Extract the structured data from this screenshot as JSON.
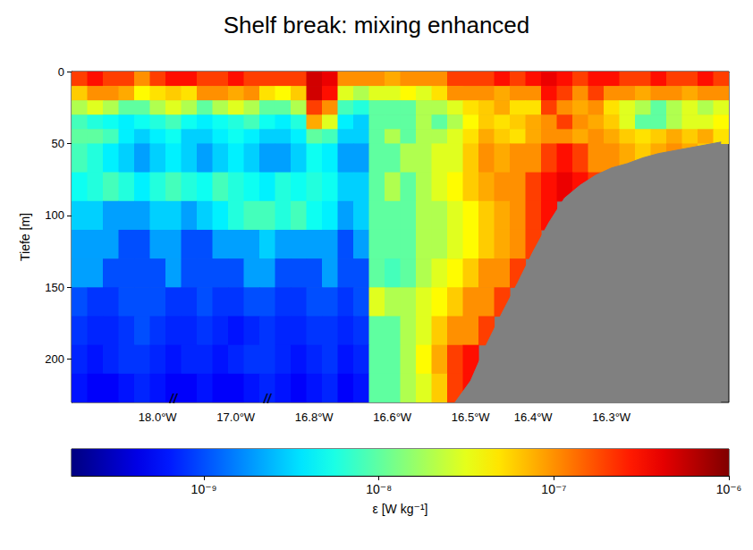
{
  "chart_data": {
    "type": "heatmap",
    "title": "Shelf break: mixing enhanced",
    "y_label": "Tiefe [m]",
    "categories": [
      null,
      null,
      null,
      null,
      null,
      "18.0°W",
      null,
      null,
      null,
      null,
      "17.0°W",
      null,
      null,
      null,
      null,
      "16.8°W",
      null,
      null,
      null,
      null,
      "16.6°W",
      null,
      null,
      null,
      null,
      "16.5°W",
      null,
      null,
      null,
      "16.4°W",
      null,
      null,
      null,
      null,
      "16.3°W",
      null,
      null,
      null,
      null,
      null,
      null,
      null
    ],
    "depth_edges": [
      0,
      10,
      20,
      30,
      40,
      50,
      70,
      90,
      110,
      130,
      150,
      170,
      190,
      210,
      230
    ],
    "cells": [
      [
        2e-07,
        3e-07,
        2e-07,
        2e-07,
        1e-07,
        2e-07,
        3e-07,
        3e-07,
        2e-07,
        2e-07,
        3e-07,
        2e-07,
        2e-07,
        2e-07,
        2e-07,
        5e-07,
        4e-07,
        1e-07,
        1e-07,
        1e-07,
        8e-08,
        1e-07,
        1e-07,
        1e-07,
        2e-07,
        2e-07,
        2e-07,
        3e-07,
        2e-07,
        3e-07,
        4e-07,
        3e-07,
        2e-07,
        3e-07,
        3e-07,
        2e-07,
        2e-07,
        3e-07,
        2e-07,
        2e-07,
        3e-07,
        2e-07
      ],
      [
        6e-08,
        1e-07,
        1e-07,
        8e-08,
        4e-08,
        5e-08,
        6e-08,
        5e-08,
        1e-07,
        1e-07,
        8e-08,
        1e-07,
        5e-08,
        4e-08,
        6e-08,
        5e-07,
        3e-07,
        3e-08,
        2e-08,
        3e-08,
        3e-08,
        4e-08,
        3e-08,
        5e-08,
        1e-07,
        1e-07,
        1e-07,
        8e-08,
        1e-07,
        1e-07,
        3e-07,
        2e-07,
        1e-07,
        2e-07,
        1e-07,
        1e-07,
        8e-08,
        1e-07,
        1e-07,
        8e-08,
        1e-07,
        1e-07
      ],
      [
        2e-08,
        3e-08,
        2e-08,
        1e-08,
        1e-08,
        2e-08,
        3e-08,
        2e-08,
        1e-08,
        2e-08,
        3e-08,
        2e-08,
        1e-08,
        1e-08,
        2e-08,
        2e-07,
        1e-07,
        8e-09,
        6e-09,
        1e-08,
        1e-08,
        1e-08,
        2e-08,
        2e-08,
        3e-08,
        5e-08,
        6e-08,
        8e-08,
        5e-08,
        5e-08,
        2e-07,
        1e-07,
        8e-08,
        1e-07,
        5e-08,
        3e-08,
        2e-08,
        1e-08,
        2e-08,
        3e-08,
        2e-08,
        3e-08
      ],
      [
        8e-09,
        6e-09,
        5e-09,
        4e-09,
        5e-09,
        6e-09,
        8e-09,
        5e-09,
        4e-09,
        5e-09,
        6e-09,
        8e-09,
        5e-09,
        4e-09,
        6e-09,
        8e-08,
        3e-08,
        4e-09,
        3e-09,
        1e-08,
        1e-08,
        1e-08,
        2e-08,
        1e-08,
        2e-08,
        4e-08,
        6e-08,
        5e-08,
        6e-08,
        8e-08,
        1e-07,
        2e-07,
        1e-07,
        8e-08,
        6e-08,
        3e-08,
        1e-08,
        1e-08,
        2e-08,
        3e-08,
        3e-08,
        4e-08
      ],
      [
        1e-08,
        1e-08,
        8e-09,
        4e-09,
        3e-09,
        4e-09,
        5e-09,
        3e-09,
        3e-09,
        4e-09,
        5e-09,
        4e-09,
        3e-09,
        3e-09,
        4e-09,
        1e-08,
        8e-09,
        3e-09,
        3e-09,
        1e-08,
        2e-08,
        1e-08,
        2e-08,
        2e-08,
        3e-08,
        5e-08,
        8e-08,
        6e-08,
        5e-08,
        8e-08,
        1e-07,
        1e-07,
        8e-08,
        1e-07,
        8e-08,
        6e-08,
        5e-08,
        6e-08,
        8e-08,
        6e-08,
        8e-08,
        5e-08
      ],
      [
        8e-09,
        6e-09,
        4e-09,
        3e-09,
        2e-09,
        3e-09,
        4e-09,
        3e-09,
        2e-09,
        3e-09,
        4e-09,
        3e-09,
        2e-09,
        2e-09,
        3e-09,
        5e-09,
        4e-09,
        2e-09,
        2e-09,
        1e-08,
        1e-08,
        2e-08,
        2e-08,
        3e-08,
        3e-08,
        6e-08,
        1e-07,
        8e-08,
        1e-07,
        1e-07,
        2e-07,
        3e-07,
        2e-07,
        1e-07,
        1e-07,
        8e-08,
        6e-08,
        8e-08,
        1e-07,
        8e-08,
        6e-08,
        null
      ],
      [
        5e-09,
        6e-09,
        8e-09,
        6e-09,
        4e-09,
        6e-09,
        8e-09,
        6e-09,
        5e-09,
        8e-09,
        6e-09,
        5e-09,
        4e-09,
        6e-09,
        5e-09,
        6e-09,
        5e-09,
        3e-09,
        3e-09,
        1e-08,
        2e-08,
        1e-08,
        2e-08,
        3e-08,
        4e-08,
        6e-08,
        8e-08,
        1e-07,
        1e-07,
        2e-07,
        3e-07,
        4e-07,
        3e-07,
        2e-07,
        null,
        null,
        null,
        null,
        null,
        null,
        null,
        null
      ],
      [
        3e-09,
        3e-09,
        2e-09,
        2e-09,
        2e-09,
        3e-09,
        3e-09,
        2e-09,
        3e-09,
        4e-09,
        6e-09,
        8e-09,
        8e-09,
        6e-09,
        8e-09,
        5e-09,
        4e-09,
        2e-09,
        3e-09,
        1e-08,
        1e-08,
        1e-08,
        2e-08,
        2e-08,
        3e-08,
        4e-08,
        6e-08,
        8e-08,
        1e-07,
        2e-07,
        3e-07,
        null,
        null,
        null,
        null,
        null,
        null,
        null,
        null,
        null,
        null,
        null
      ],
      [
        2e-09,
        2e-09,
        2e-09,
        1e-09,
        1e-09,
        2e-09,
        2e-09,
        1e-09,
        1e-09,
        2e-09,
        2e-09,
        2e-09,
        3e-09,
        2e-09,
        2e-09,
        2e-09,
        2e-09,
        1e-09,
        2e-09,
        1e-08,
        1e-08,
        1e-08,
        2e-08,
        2e-08,
        3e-08,
        4e-08,
        6e-08,
        8e-08,
        1e-07,
        2e-07,
        null,
        null,
        null,
        null,
        null,
        null,
        null,
        null,
        null,
        null,
        null,
        null
      ],
      [
        2e-09,
        2e-09,
        1e-09,
        1e-09,
        1e-09,
        1e-09,
        2e-09,
        1e-09,
        1e-09,
        1e-09,
        1e-09,
        2e-09,
        2e-09,
        1e-09,
        1e-09,
        1e-09,
        2e-09,
        1e-09,
        1e-09,
        1e-08,
        8e-09,
        1e-08,
        2e-08,
        3e-08,
        4e-08,
        6e-08,
        1e-07,
        1e-07,
        2e-07,
        null,
        null,
        null,
        null,
        null,
        null,
        null,
        null,
        null,
        null,
        null,
        null,
        null
      ],
      [
        1e-09,
        8e-10,
        8e-10,
        1e-09,
        1e-09,
        1e-09,
        8e-10,
        8e-10,
        1e-09,
        8e-10,
        8e-10,
        1e-09,
        1e-09,
        8e-10,
        8e-10,
        1e-09,
        1e-09,
        8e-10,
        1e-09,
        3e-08,
        2e-08,
        2e-08,
        3e-08,
        4e-08,
        6e-08,
        1e-07,
        1e-07,
        2e-07,
        null,
        null,
        null,
        null,
        null,
        null,
        null,
        null,
        null,
        null,
        null,
        null,
        null,
        null
      ],
      [
        8e-10,
        7e-10,
        7e-10,
        8e-10,
        1e-09,
        8e-10,
        7e-10,
        7e-10,
        8e-10,
        7e-10,
        6e-10,
        7e-10,
        8e-10,
        7e-10,
        7e-10,
        8e-10,
        8e-10,
        7e-10,
        8e-10,
        1e-08,
        1e-08,
        2e-08,
        3e-08,
        6e-08,
        1e-07,
        1e-07,
        2e-07,
        null,
        null,
        null,
        null,
        null,
        null,
        null,
        null,
        null,
        null,
        null,
        null,
        null,
        null,
        null
      ],
      [
        7e-10,
        6e-10,
        7e-10,
        8e-10,
        8e-10,
        7e-10,
        6e-10,
        7e-10,
        7e-10,
        6e-10,
        7e-10,
        8e-10,
        8e-10,
        7e-10,
        6e-10,
        7e-10,
        8e-10,
        6e-10,
        7e-10,
        1e-08,
        1e-08,
        2e-08,
        4e-08,
        8e-08,
        2e-07,
        3e-07,
        null,
        null,
        null,
        null,
        null,
        null,
        null,
        null,
        null,
        null,
        null,
        null,
        null,
        null,
        null,
        null
      ],
      [
        6e-10,
        5e-10,
        5e-10,
        6e-10,
        7e-10,
        6e-10,
        5e-10,
        5e-10,
        6e-10,
        5e-10,
        5e-10,
        6e-10,
        7e-10,
        6e-10,
        5e-10,
        6e-10,
        7e-10,
        5e-10,
        6e-10,
        1e-08,
        1e-08,
        2e-08,
        3e-08,
        6e-08,
        2e-07,
        3e-07,
        null,
        null,
        null,
        null,
        null,
        null,
        null,
        null,
        null,
        null,
        null,
        null,
        null,
        null,
        null,
        null
      ]
    ],
    "bottom": [
      null,
      null,
      null,
      null,
      null,
      null,
      null,
      null,
      null,
      null,
      null,
      null,
      null,
      null,
      null,
      null,
      null,
      null,
      null,
      null,
      null,
      null,
      null,
      null,
      230,
      215,
      190,
      168,
      147,
      125,
      105,
      88,
      79,
      72,
      67,
      64,
      60,
      57,
      55,
      53,
      51,
      49
    ],
    "ylim": [
      0,
      230
    ],
    "yticks": [
      0,
      50,
      100,
      150,
      200
    ],
    "annotations": [
      {
        "text": "//",
        "x": 6
      },
      {
        "text": "//",
        "x": 12
      }
    ],
    "colorbar": {
      "range": [
        1.75e-10,
        1e-06
      ],
      "log": true,
      "ticks": [
        {
          "value": 1e-09,
          "label": "10⁻⁹"
        },
        {
          "value": 1e-08,
          "label": "10⁻⁸"
        },
        {
          "value": 1e-07,
          "label": "10⁻⁷"
        },
        {
          "value": 1e-06,
          "label": "10⁻⁶"
        }
      ],
      "label": "ε [W kg⁻¹]"
    }
  }
}
